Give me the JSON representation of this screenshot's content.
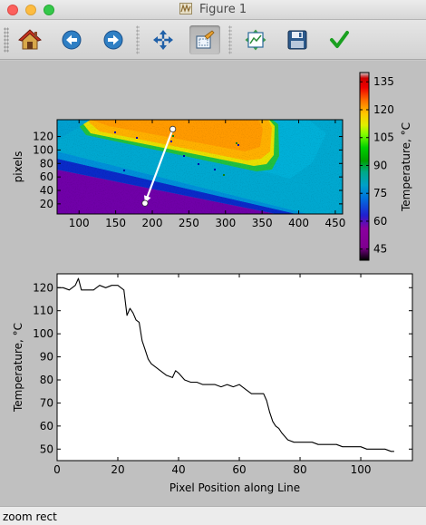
{
  "window": {
    "title": "Figure 1"
  },
  "toolbar": {
    "buttons": [
      {
        "id": "home",
        "icon": "home-icon"
      },
      {
        "id": "back",
        "icon": "back-arrow-icon"
      },
      {
        "id": "forward",
        "icon": "forward-arrow-icon"
      },
      {
        "id": "pan",
        "icon": "pan-icon"
      },
      {
        "id": "zoom",
        "icon": "zoom-rect-icon",
        "active": true
      },
      {
        "id": "subplots",
        "icon": "subplots-icon"
      },
      {
        "id": "save",
        "icon": "save-icon"
      },
      {
        "id": "edit",
        "icon": "checkmark-icon"
      }
    ]
  },
  "status": {
    "text": "zoom rect"
  },
  "colors": {
    "line": "#000000",
    "profile_line": "#ffffff",
    "figure_bg": "#c0c0c0"
  },
  "chart_data": [
    {
      "type": "heatmap",
      "title": "",
      "xlabel": "",
      "ylabel": "pixels",
      "xlim": [
        70,
        460
      ],
      "ylim": [
        5,
        145
      ],
      "xticks": [
        100,
        150,
        200,
        250,
        300,
        350,
        400,
        450
      ],
      "yticks": [
        20,
        40,
        60,
        80,
        100,
        120
      ],
      "colorbar": {
        "label": "Temperature, °C",
        "range": [
          39,
          140
        ],
        "ticks": [
          45,
          60,
          75,
          90,
          105,
          120,
          135
        ],
        "colormap": "nipy_spectral"
      },
      "profile_line": {
        "start": [
          228,
          131
        ],
        "end": [
          190,
          21
        ]
      }
    },
    {
      "type": "line",
      "title": "",
      "xlabel": "Pixel Position along Line",
      "ylabel": "Temperature, °C",
      "xlim": [
        0,
        117
      ],
      "ylim": [
        45,
        126
      ],
      "xticks": [
        0,
        20,
        40,
        60,
        80,
        100
      ],
      "yticks": [
        50,
        60,
        70,
        80,
        90,
        100,
        110,
        120
      ],
      "grid": false,
      "series": [
        {
          "x": [
            0,
            2,
            4,
            6,
            7,
            8,
            10,
            12,
            14,
            16,
            18,
            20,
            21,
            22,
            23,
            24,
            25,
            26,
            27,
            28,
            29,
            30,
            31,
            32,
            34,
            36,
            38,
            39,
            40,
            42,
            44,
            46,
            48,
            50,
            52,
            54,
            56,
            58,
            60,
            62,
            64,
            66,
            68,
            69,
            70,
            71,
            72,
            73,
            74,
            76,
            78,
            80,
            82,
            84,
            86,
            88,
            90,
            92,
            94,
            96,
            98,
            100,
            102,
            104,
            106,
            108,
            110,
            111
          ],
          "y": [
            120,
            120,
            119,
            121,
            124,
            119,
            119,
            119,
            121,
            120,
            121,
            121,
            120,
            119,
            108,
            111,
            109,
            106,
            105,
            97,
            93,
            89,
            87,
            86,
            84,
            82,
            81,
            84,
            83,
            80,
            79,
            79,
            78,
            78,
            78,
            77,
            78,
            77,
            78,
            76,
            74,
            74,
            74,
            71,
            66,
            62,
            60,
            59,
            57,
            54,
            53,
            53,
            53,
            53,
            52,
            52,
            52,
            52,
            51,
            51,
            51,
            51,
            50,
            50,
            50,
            50,
            49,
            49
          ]
        }
      ]
    }
  ]
}
